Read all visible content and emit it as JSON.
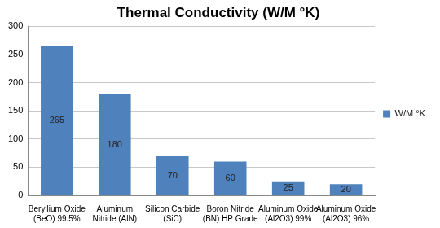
{
  "chart_data": {
    "type": "bar",
    "title": "Thermal Conductivity (W/M °K)",
    "categories": [
      "Beryllium Oxide (BeO) 99.5%",
      "Aluminum Nitride (AlN)",
      "Silicon Carbide (SiC)",
      "Boron Nitride (BN) HP Grade",
      "Aluminum Oxide (Al2O3) 99%",
      "Aluminum Oxide (Al2O3) 96%"
    ],
    "series": [
      {
        "name": "W/M °K",
        "color": "#4f81bd",
        "values": [
          265,
          180,
          70,
          60,
          25,
          20
        ]
      }
    ],
    "ylim": [
      0,
      300
    ],
    "yticks": [
      0,
      50,
      100,
      150,
      200,
      250,
      300
    ],
    "grid": true,
    "legend": "right",
    "data_labels": true
  }
}
